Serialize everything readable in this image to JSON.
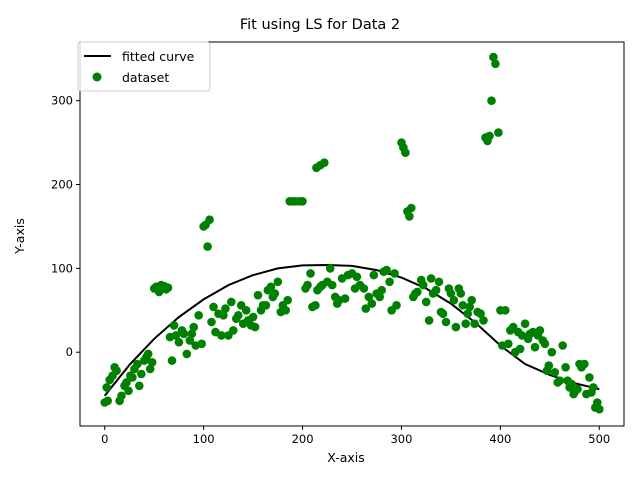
{
  "chart_data": {
    "type": "scatter",
    "title": "Fit using LS for Data 2",
    "xlabel": "X-axis",
    "ylabel": "Y-axis",
    "xlim": [
      -25,
      525
    ],
    "ylim": [
      -88,
      370
    ],
    "xticks": [
      0,
      100,
      200,
      300,
      400,
      500
    ],
    "yticks": [
      0,
      100,
      200,
      300
    ],
    "grid": false,
    "legend_position": "upper-left",
    "series": [
      {
        "name": "fitted curve",
        "kind": "line",
        "color": "#000000",
        "x": [
          0,
          25,
          50,
          75,
          100,
          125,
          150,
          175,
          200,
          225,
          250,
          275,
          300,
          325,
          350,
          375,
          400,
          425,
          450,
          475,
          500
        ],
        "y": [
          -52,
          -15,
          16,
          42,
          63,
          80,
          92,
          100,
          103.5,
          104,
          103,
          98,
          89,
          76,
          58,
          35,
          8,
          -14,
          -27,
          -37,
          -44
        ]
      },
      {
        "name": "dataset",
        "kind": "scatter",
        "color": "#008000",
        "points": [
          [
            0,
            -60
          ],
          [
            3,
            -58
          ],
          [
            2,
            -42
          ],
          [
            5,
            -33
          ],
          [
            8,
            -28
          ],
          [
            10,
            -18
          ],
          [
            12,
            -22
          ],
          [
            15,
            -58
          ],
          [
            17,
            -52
          ],
          [
            20,
            -40
          ],
          [
            22,
            -36
          ],
          [
            24,
            -46
          ],
          [
            26,
            -28
          ],
          [
            28,
            -30
          ],
          [
            30,
            -20
          ],
          [
            33,
            -14
          ],
          [
            35,
            -40
          ],
          [
            37,
            -26
          ],
          [
            40,
            -10
          ],
          [
            42,
            -6
          ],
          [
            44,
            -2
          ],
          [
            46,
            -20
          ],
          [
            48,
            -12
          ],
          [
            50,
            76
          ],
          [
            52,
            78
          ],
          [
            55,
            72
          ],
          [
            57,
            80
          ],
          [
            60,
            79
          ],
          [
            62,
            75
          ],
          [
            64,
            77
          ],
          [
            66,
            18
          ],
          [
            68,
            -10
          ],
          [
            70,
            32
          ],
          [
            72,
            20
          ],
          [
            75,
            12
          ],
          [
            78,
            26
          ],
          [
            80,
            22
          ],
          [
            83,
            -2
          ],
          [
            86,
            14
          ],
          [
            88,
            22
          ],
          [
            90,
            30
          ],
          [
            92,
            8
          ],
          [
            95,
            44
          ],
          [
            98,
            10
          ],
          [
            100,
            150
          ],
          [
            102,
            152
          ],
          [
            104,
            126
          ],
          [
            106,
            158
          ],
          [
            108,
            36
          ],
          [
            110,
            54
          ],
          [
            112,
            24
          ],
          [
            115,
            46
          ],
          [
            118,
            20
          ],
          [
            120,
            44
          ],
          [
            122,
            52
          ],
          [
            125,
            20
          ],
          [
            128,
            60
          ],
          [
            130,
            26
          ],
          [
            133,
            40
          ],
          [
            135,
            44
          ],
          [
            138,
            56
          ],
          [
            140,
            34
          ],
          [
            143,
            50
          ],
          [
            145,
            38
          ],
          [
            148,
            32
          ],
          [
            150,
            42
          ],
          [
            152,
            30
          ],
          [
            155,
            68
          ],
          [
            158,
            50
          ],
          [
            160,
            56
          ],
          [
            163,
            56
          ],
          [
            165,
            74
          ],
          [
            168,
            78
          ],
          [
            170,
            66
          ],
          [
            172,
            70
          ],
          [
            175,
            84
          ],
          [
            178,
            48
          ],
          [
            180,
            56
          ],
          [
            183,
            50
          ],
          [
            185,
            62
          ],
          [
            187,
            180
          ],
          [
            190,
            180
          ],
          [
            193,
            180
          ],
          [
            197,
            180
          ],
          [
            200,
            180
          ],
          [
            203,
            76
          ],
          [
            205,
            80
          ],
          [
            208,
            94
          ],
          [
            210,
            54
          ],
          [
            213,
            56
          ],
          [
            215,
            74
          ],
          [
            218,
            78
          ],
          [
            220,
            80
          ],
          [
            214,
            220
          ],
          [
            218,
            223
          ],
          [
            222,
            226
          ],
          [
            225,
            84
          ],
          [
            228,
            100
          ],
          [
            230,
            80
          ],
          [
            233,
            66
          ],
          [
            235,
            58
          ],
          [
            237,
            62
          ],
          [
            240,
            88
          ],
          [
            243,
            64
          ],
          [
            246,
            92
          ],
          [
            250,
            94
          ],
          [
            253,
            76
          ],
          [
            255,
            90
          ],
          [
            258,
            80
          ],
          [
            262,
            76
          ],
          [
            264,
            52
          ],
          [
            267,
            66
          ],
          [
            270,
            58
          ],
          [
            272,
            92
          ],
          [
            275,
            70
          ],
          [
            278,
            66
          ],
          [
            280,
            74
          ],
          [
            282,
            96
          ],
          [
            285,
            98
          ],
          [
            288,
            84
          ],
          [
            290,
            50
          ],
          [
            293,
            94
          ],
          [
            295,
            56
          ],
          [
            300,
            250
          ],
          [
            302,
            244
          ],
          [
            304,
            238
          ],
          [
            306,
            168
          ],
          [
            308,
            162
          ],
          [
            310,
            172
          ],
          [
            312,
            66
          ],
          [
            314,
            70
          ],
          [
            316,
            72
          ],
          [
            320,
            86
          ],
          [
            322,
            80
          ],
          [
            325,
            60
          ],
          [
            328,
            38
          ],
          [
            330,
            88
          ],
          [
            332,
            70
          ],
          [
            335,
            74
          ],
          [
            338,
            84
          ],
          [
            340,
            48
          ],
          [
            342,
            46
          ],
          [
            345,
            36
          ],
          [
            348,
            76
          ],
          [
            350,
            70
          ],
          [
            353,
            62
          ],
          [
            355,
            30
          ],
          [
            358,
            76
          ],
          [
            360,
            70
          ],
          [
            362,
            56
          ],
          [
            365,
            34
          ],
          [
            367,
            46
          ],
          [
            369,
            54
          ],
          [
            371,
            62
          ],
          [
            374,
            34
          ],
          [
            377,
            48
          ],
          [
            380,
            46
          ],
          [
            383,
            38
          ],
          [
            385,
            256
          ],
          [
            387,
            252
          ],
          [
            389,
            258
          ],
          [
            391,
            300
          ],
          [
            393,
            352
          ],
          [
            395,
            344
          ],
          [
            398,
            262
          ],
          [
            400,
            50
          ],
          [
            402,
            8
          ],
          [
            405,
            50
          ],
          [
            408,
            10
          ],
          [
            410,
            26
          ],
          [
            413,
            30
          ],
          [
            415,
            0
          ],
          [
            418,
            24
          ],
          [
            420,
            4
          ],
          [
            422,
            20
          ],
          [
            425,
            34
          ],
          [
            428,
            16
          ],
          [
            430,
            22
          ],
          [
            433,
            24
          ],
          [
            435,
            6
          ],
          [
            438,
            20
          ],
          [
            440,
            26
          ],
          [
            443,
            14
          ],
          [
            445,
            10
          ],
          [
            447,
            -22
          ],
          [
            449,
            -16
          ],
          [
            452,
            0
          ],
          [
            455,
            -24
          ],
          [
            458,
            -36
          ],
          [
            460,
            -34
          ],
          [
            463,
            8
          ],
          [
            466,
            -18
          ],
          [
            468,
            -34
          ],
          [
            470,
            -42
          ],
          [
            472,
            -38
          ],
          [
            474,
            -50
          ],
          [
            476,
            -46
          ],
          [
            478,
            -44
          ],
          [
            480,
            -14
          ],
          [
            482,
            -18
          ],
          [
            485,
            -14
          ],
          [
            487,
            -50
          ],
          [
            490,
            -30
          ],
          [
            492,
            -48
          ],
          [
            494,
            -42
          ],
          [
            496,
            -66
          ],
          [
            498,
            -60
          ],
          [
            500,
            -68
          ]
        ]
      }
    ]
  }
}
